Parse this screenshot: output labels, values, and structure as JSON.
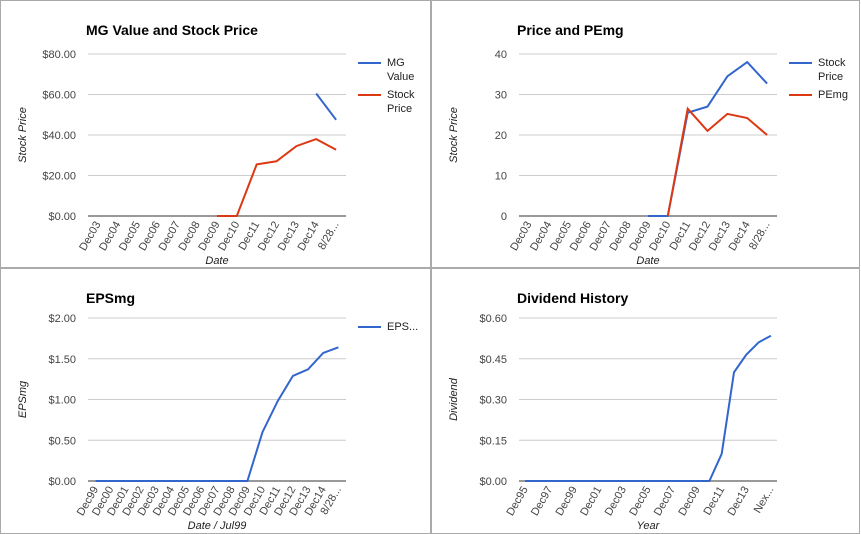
{
  "chart_data": [
    {
      "type": "line",
      "title": "MG Value and Stock Price",
      "y_label": "Stock Price",
      "x_label": "Date",
      "categories": [
        "Dec03",
        "Dec04",
        "Dec05",
        "Dec06",
        "Dec07",
        "Dec08",
        "Dec09",
        "Dec10",
        "Dec11",
        "Dec12",
        "Dec13",
        "Dec14",
        "8/28..."
      ],
      "series": [
        {
          "name": "MG Value",
          "color": "#3366cc",
          "values": [
            null,
            null,
            null,
            null,
            null,
            null,
            null,
            null,
            null,
            null,
            null,
            60.5,
            47.5
          ]
        },
        {
          "name": "Stock Price",
          "color": "#dc3912",
          "values": [
            null,
            null,
            null,
            null,
            null,
            null,
            0,
            0,
            25.5,
            27,
            34.5,
            38,
            32.7
          ]
        }
      ],
      "ylim": [
        0,
        80
      ],
      "yticks": [
        {
          "value": 0,
          "label": "$0.00"
        },
        {
          "value": 20,
          "label": "$20.00"
        },
        {
          "value": 40,
          "label": "$40.00"
        },
        {
          "value": 60,
          "label": "$60.00"
        },
        {
          "value": 80,
          "label": "$80.00"
        }
      ],
      "grid": true,
      "legend": "right"
    },
    {
      "type": "line",
      "title": "Price and PEmg",
      "y_label": "Stock Price",
      "x_label": "Date",
      "categories": [
        "Dec03",
        "Dec04",
        "Dec05",
        "Dec06",
        "Dec07",
        "Dec08",
        "Dec09",
        "Dec10",
        "Dec11",
        "Dec12",
        "Dec13",
        "Dec14",
        "8/28..."
      ],
      "series": [
        {
          "name": "Stock Price",
          "color": "#3366cc",
          "values": [
            null,
            null,
            null,
            null,
            null,
            null,
            0,
            0,
            25.5,
            27,
            34.5,
            38,
            32.7
          ]
        },
        {
          "name": "PEmg",
          "color": "#dc3912",
          "values": [
            null,
            null,
            null,
            null,
            null,
            null,
            null,
            0,
            26.5,
            21,
            25.2,
            24.2,
            20
          ]
        }
      ],
      "ylim": [
        0,
        40
      ],
      "yticks": [
        0,
        10,
        20,
        30,
        40
      ],
      "grid": true,
      "legend": "right"
    },
    {
      "type": "line",
      "title": "EPSmg",
      "y_label": "EPSmg",
      "x_label": "Date / Jul99",
      "categories": [
        "Dec99",
        "Dec00",
        "Dec01",
        "Dec02",
        "Dec03",
        "Dec04",
        "Dec05",
        "Dec06",
        "Dec07",
        "Dec08",
        "Dec09",
        "Dec10",
        "Dec11",
        "Dec12",
        "Dec13",
        "Dec14",
        "8/28..."
      ],
      "series": [
        {
          "name": "EPS...",
          "color": "#3366cc",
          "values": [
            0,
            0,
            0,
            0,
            0,
            0,
            0,
            0,
            0,
            0,
            0,
            0.6,
            0.98,
            1.29,
            1.37,
            1.57,
            1.64
          ]
        }
      ],
      "ylim": [
        0,
        2
      ],
      "yticks": [
        {
          "value": 0,
          "label": "$0.00"
        },
        {
          "value": 0.5,
          "label": "$0.50"
        },
        {
          "value": 1,
          "label": "$1.00"
        },
        {
          "value": 1.5,
          "label": "$1.50"
        },
        {
          "value": 2,
          "label": "$2.00"
        }
      ],
      "grid": true,
      "legend": "right"
    },
    {
      "type": "line",
      "title": "Dividend History",
      "y_label": "Dividend",
      "x_label": "Year",
      "categories": [
        "Dec95",
        null,
        "Dec97",
        null,
        "Dec99",
        null,
        "Dec01",
        null,
        "Dec03",
        null,
        "Dec05",
        null,
        "Dec07",
        null,
        "Dec09",
        null,
        "Dec11",
        null,
        "Dec13",
        null,
        "Nex..."
      ],
      "series": [
        {
          "color": "#3366cc",
          "values": [
            0,
            0,
            0,
            0,
            0,
            0,
            0,
            0,
            0,
            0,
            0,
            0,
            0,
            0,
            0,
            0,
            0.1,
            0.4,
            0.465,
            0.51,
            0.535
          ]
        }
      ],
      "ylim": [
        0,
        0.6
      ],
      "yticks": [
        {
          "value": 0,
          "label": "$0.00"
        },
        {
          "value": 0.15,
          "label": "$0.15"
        },
        {
          "value": 0.3,
          "label": "$0.30"
        },
        {
          "value": 0.45,
          "label": "$0.45"
        },
        {
          "value": 0.6,
          "label": "$0.60"
        }
      ],
      "grid": true
    }
  ]
}
